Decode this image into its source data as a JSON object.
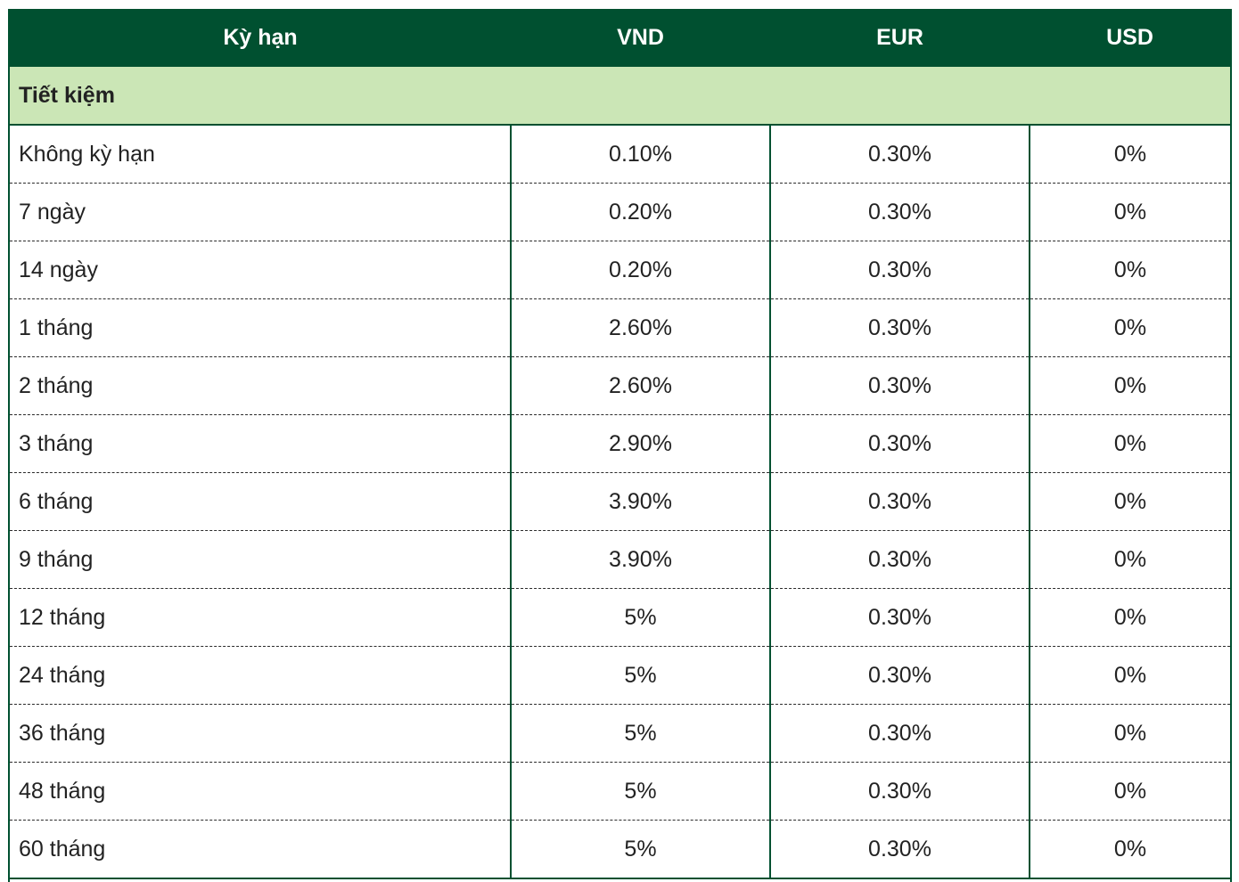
{
  "table": {
    "headers": [
      "Kỳ hạn",
      "VND",
      "EUR",
      "USD"
    ],
    "section_label": "Tiết kiệm",
    "rows": [
      {
        "term": "Không kỳ hạn",
        "vnd": "0.10%",
        "eur": "0.30%",
        "usd": "0%"
      },
      {
        "term": "7 ngày",
        "vnd": "0.20%",
        "eur": "0.30%",
        "usd": "0%"
      },
      {
        "term": "14 ngày",
        "vnd": "0.20%",
        "eur": "0.30%",
        "usd": "0%"
      },
      {
        "term": "1 tháng",
        "vnd": "2.60%",
        "eur": "0.30%",
        "usd": "0%"
      },
      {
        "term": "2 tháng",
        "vnd": "2.60%",
        "eur": "0.30%",
        "usd": "0%"
      },
      {
        "term": "3 tháng",
        "vnd": "2.90%",
        "eur": "0.30%",
        "usd": "0%"
      },
      {
        "term": "6 tháng",
        "vnd": "3.90%",
        "eur": "0.30%",
        "usd": "0%"
      },
      {
        "term": "9 tháng",
        "vnd": "3.90%",
        "eur": "0.30%",
        "usd": "0%"
      },
      {
        "term": "12 tháng",
        "vnd": "5%",
        "eur": "0.30%",
        "usd": "0%"
      },
      {
        "term": "24 tháng",
        "vnd": "5%",
        "eur": "0.30%",
        "usd": "0%"
      },
      {
        "term": "36 tháng",
        "vnd": "5%",
        "eur": "0.30%",
        "usd": "0%"
      },
      {
        "term": "48 tháng",
        "vnd": "5%",
        "eur": "0.30%",
        "usd": "0%"
      },
      {
        "term": "60 tháng",
        "vnd": "5%",
        "eur": "0.30%",
        "usd": "0%"
      }
    ]
  },
  "colors": {
    "header_bg": "#005030",
    "section_bg": "#cbe6b6",
    "text": "#222222"
  }
}
